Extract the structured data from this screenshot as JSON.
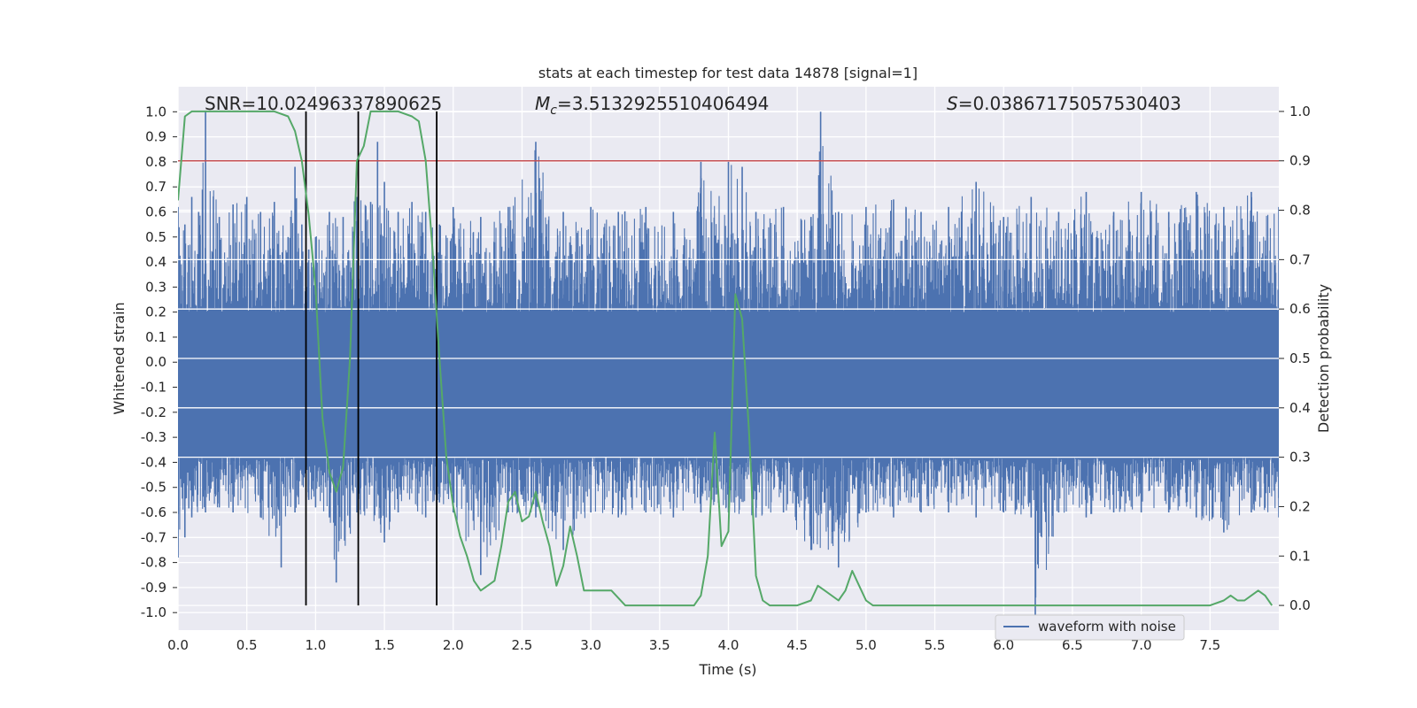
{
  "chart_data": {
    "type": "line",
    "title": "stats at each timestep for test data 14878 [signal=1]",
    "xlabel": "Time (s)",
    "ylabel_left": "Whitened strain",
    "ylabel_right": "Detection probability",
    "xlim": [
      0.0,
      8.0
    ],
    "ylim_left": [
      -1.07,
      1.1
    ],
    "ylim_right": [
      -0.05,
      1.05
    ],
    "x_ticks": [
      0.0,
      0.5,
      1.0,
      1.5,
      2.0,
      2.5,
      3.0,
      3.5,
      4.0,
      4.5,
      5.0,
      5.5,
      6.0,
      6.5,
      7.0,
      7.5
    ],
    "x_tick_labels": [
      "0.0",
      "0.5",
      "1.0",
      "1.5",
      "2.0",
      "2.5",
      "3.0",
      "3.5",
      "4.0",
      "4.5",
      "5.0",
      "5.5",
      "6.0",
      "6.5",
      "7.0",
      "7.5"
    ],
    "y_left_ticks": [
      1.0,
      0.9,
      0.8,
      0.7,
      0.6,
      0.5,
      0.4,
      0.3,
      0.2,
      0.1,
      0.0,
      -0.1,
      -0.2,
      -0.3,
      -0.4,
      -0.5,
      -0.6,
      -0.7,
      -0.8,
      -0.9,
      -1.0
    ],
    "y_left_tick_labels": [
      "1.0",
      "0.9",
      "0.8",
      "0.7",
      "0.6",
      "0.5",
      "0.4",
      "0.3",
      "0.2",
      "0.1",
      "0.0",
      "-0.1",
      "-0.2",
      "-0.3",
      "-0.4",
      "-0.5",
      "-0.6",
      "-0.7",
      "-0.8",
      "-0.9",
      "-1.0"
    ],
    "y_right_ticks": [
      1.0,
      0.9,
      0.8,
      0.7,
      0.6,
      0.5,
      0.4,
      0.3,
      0.2,
      0.1,
      0.0
    ],
    "y_right_tick_labels": [
      "1.0",
      "0.9",
      "0.8",
      "0.7",
      "0.6",
      "0.5",
      "0.4",
      "0.3",
      "0.2",
      "0.1",
      "0.0"
    ],
    "grid": true,
    "background": "#eaeaf2",
    "annotations": {
      "snr": "SNR=10.02496337890625",
      "mc_symbol": "M",
      "mc_sub": "c",
      "mc_value": "=3.5132925510406494",
      "s_symbol": "S",
      "s_value": "=0.03867175057530403"
    },
    "legend": {
      "label": "waveform with noise",
      "position": "lower-right"
    },
    "colors": {
      "waveform": "#4c72b0",
      "probability": "#55a868",
      "threshold": "#c44e52",
      "vlines": "#000000"
    },
    "threshold": {
      "axis": "right",
      "value": 0.9
    },
    "vlines": [
      0.93,
      1.31,
      1.88
    ],
    "waveform": {
      "envelope_upper_x": [
        0.0,
        0.05,
        0.1,
        0.15,
        0.2,
        0.3,
        0.4,
        0.5,
        0.6,
        0.7,
        0.8,
        0.85,
        0.9,
        0.95,
        1.0,
        1.1,
        1.2,
        1.3,
        1.4,
        1.45,
        1.5,
        1.6,
        1.7,
        1.8,
        1.9,
        2.0,
        2.2,
        2.4,
        2.6,
        2.8,
        3.0,
        3.2,
        3.4,
        3.6,
        3.8,
        4.0,
        4.1,
        4.2,
        4.4,
        4.6,
        4.67,
        4.8,
        5.0,
        5.2,
        5.4,
        5.6,
        5.8,
        6.0,
        6.2,
        6.4,
        6.6,
        6.8,
        7.0,
        7.2,
        7.4,
        7.6,
        7.8,
        8.0
      ],
      "envelope_upper_y": [
        0.62,
        0.55,
        0.66,
        0.6,
        1.0,
        0.58,
        0.63,
        0.66,
        0.6,
        0.64,
        0.5,
        0.78,
        0.55,
        0.45,
        0.5,
        0.6,
        0.58,
        0.66,
        0.64,
        0.88,
        0.72,
        0.6,
        0.64,
        0.6,
        0.55,
        0.62,
        0.58,
        0.62,
        0.88,
        0.6,
        0.62,
        0.6,
        0.62,
        0.6,
        0.8,
        0.8,
        0.78,
        0.6,
        0.62,
        0.58,
        1.0,
        0.6,
        0.62,
        0.65,
        0.6,
        0.62,
        0.72,
        0.58,
        0.66,
        0.6,
        0.68,
        0.6,
        0.68,
        0.6,
        0.68,
        0.62,
        0.68,
        0.62
      ],
      "envelope_lower_x": [
        0.0,
        0.05,
        0.1,
        0.2,
        0.3,
        0.4,
        0.6,
        0.75,
        0.85,
        0.95,
        1.0,
        1.1,
        1.15,
        1.3,
        1.5,
        1.6,
        1.8,
        1.9,
        2.0,
        2.2,
        2.4,
        2.6,
        2.8,
        3.0,
        3.2,
        3.4,
        3.6,
        3.8,
        4.0,
        4.2,
        4.4,
        4.6,
        4.8,
        5.0,
        5.2,
        5.4,
        5.6,
        5.8,
        6.0,
        6.2,
        6.23,
        6.4,
        6.6,
        6.8,
        7.0,
        7.2,
        7.4,
        7.6,
        7.8,
        8.0
      ],
      "envelope_lower_y": [
        -0.78,
        -0.7,
        -0.62,
        -0.6,
        -0.58,
        -0.6,
        -0.62,
        -0.82,
        -0.6,
        -0.55,
        -0.58,
        -0.62,
        -0.88,
        -0.6,
        -0.72,
        -0.6,
        -0.62,
        -0.56,
        -0.6,
        -0.85,
        -0.6,
        -0.62,
        -0.75,
        -0.6,
        -0.62,
        -0.6,
        -0.62,
        -0.6,
        -0.6,
        -0.62,
        -0.6,
        -0.75,
        -0.82,
        -0.6,
        -0.62,
        -0.6,
        -0.6,
        -0.62,
        -0.6,
        -0.62,
        -1.05,
        -0.6,
        -0.62,
        -0.6,
        -0.6,
        -0.6,
        -0.62,
        -0.68,
        -0.6,
        -0.62
      ],
      "core_band": [
        -0.38,
        0.2
      ]
    },
    "series": [
      {
        "name": "waveform with noise",
        "axis": "left",
        "note": "dense noise; shape given by waveform envelope"
      },
      {
        "axis": "right",
        "x": [
          0.0,
          0.05,
          0.1,
          0.2,
          0.3,
          0.4,
          0.5,
          0.6,
          0.7,
          0.8,
          0.85,
          0.9,
          0.95,
          1.0,
          1.05,
          1.1,
          1.15,
          1.2,
          1.25,
          1.3,
          1.35,
          1.4,
          1.45,
          1.5,
          1.6,
          1.7,
          1.75,
          1.8,
          1.85,
          1.9,
          1.95,
          2.0,
          2.05,
          2.1,
          2.15,
          2.2,
          2.25,
          2.3,
          2.35,
          2.4,
          2.45,
          2.5,
          2.55,
          2.6,
          2.65,
          2.7,
          2.75,
          2.8,
          2.85,
          2.9,
          2.95,
          3.0,
          3.05,
          3.15,
          3.25,
          3.35,
          3.45,
          3.55,
          3.65,
          3.75,
          3.8,
          3.85,
          3.9,
          3.95,
          4.0,
          4.05,
          4.1,
          4.15,
          4.2,
          4.25,
          4.3,
          4.35,
          4.4,
          4.5,
          4.6,
          4.65,
          4.7,
          4.8,
          4.85,
          4.9,
          4.95,
          5.0,
          5.05,
          5.15,
          5.25,
          5.5,
          6.0,
          6.5,
          6.7,
          7.0,
          7.5,
          7.6,
          7.65,
          7.7,
          7.75,
          7.8,
          7.85,
          7.9,
          7.95
        ],
        "y": [
          0.82,
          0.99,
          1.0,
          1.0,
          1.0,
          1.0,
          1.0,
          1.0,
          1.0,
          0.99,
          0.96,
          0.9,
          0.79,
          0.64,
          0.38,
          0.27,
          0.23,
          0.28,
          0.5,
          0.9,
          0.93,
          1.0,
          1.0,
          1.0,
          1.0,
          0.99,
          0.98,
          0.9,
          0.72,
          0.5,
          0.3,
          0.2,
          0.14,
          0.1,
          0.05,
          0.03,
          0.04,
          0.05,
          0.12,
          0.21,
          0.23,
          0.17,
          0.18,
          0.23,
          0.17,
          0.12,
          0.04,
          0.08,
          0.16,
          0.1,
          0.03,
          0.03,
          0.03,
          0.03,
          0.0,
          0.0,
          0.0,
          0.0,
          0.0,
          0.0,
          0.02,
          0.1,
          0.35,
          0.12,
          0.15,
          0.63,
          0.58,
          0.35,
          0.06,
          0.01,
          0.0,
          0.0,
          0.0,
          0.0,
          0.01,
          0.04,
          0.03,
          0.01,
          0.03,
          0.07,
          0.04,
          0.01,
          0.0,
          0.0,
          0.0,
          0.0,
          0.0,
          0.0,
          0.0,
          0.0,
          0.0,
          0.01,
          0.02,
          0.01,
          0.01,
          0.02,
          0.03,
          0.02,
          0.0
        ]
      }
    ]
  }
}
